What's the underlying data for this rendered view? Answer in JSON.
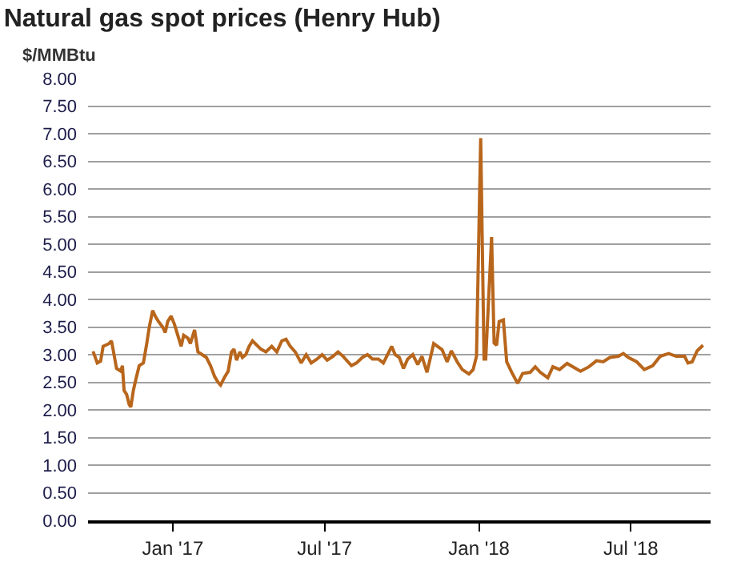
{
  "chart_data": {
    "type": "line",
    "title": "Natural gas spot prices (Henry Hub)",
    "ylabel": "$/MMBtu",
    "x": [
      "2016-09-28",
      "2016-10-03",
      "2016-10-07",
      "2016-10-10",
      "2016-10-17",
      "2016-10-20",
      "2016-10-23",
      "2016-10-26",
      "2016-10-31",
      "2016-11-02",
      "2016-11-04",
      "2016-11-07",
      "2016-11-10",
      "2016-11-12",
      "2016-11-15",
      "2016-11-18",
      "2016-11-22",
      "2016-11-27",
      "2016-12-01",
      "2016-12-04",
      "2016-12-08",
      "2016-12-11",
      "2016-12-15",
      "2016-12-20",
      "2016-12-23",
      "2016-12-26",
      "2016-12-30",
      "2017-01-03",
      "2017-01-06",
      "2017-01-11",
      "2017-01-14",
      "2017-01-19",
      "2017-01-22",
      "2017-01-27",
      "2017-01-31",
      "2017-02-05",
      "2017-02-10",
      "2017-02-15",
      "2017-02-20",
      "2017-02-24",
      "2017-02-27",
      "2017-03-04",
      "2017-03-08",
      "2017-03-12",
      "2017-03-15",
      "2017-03-18",
      "2017-03-22",
      "2017-03-25",
      "2017-03-29",
      "2017-04-02",
      "2017-04-06",
      "2017-04-16",
      "2017-04-22",
      "2017-04-29",
      "2017-05-05",
      "2017-05-11",
      "2017-05-16",
      "2017-05-21",
      "2017-05-27",
      "2017-06-03",
      "2017-06-09",
      "2017-06-15",
      "2017-06-22",
      "2017-06-28",
      "2017-07-04",
      "2017-07-11",
      "2017-07-17",
      "2017-07-23",
      "2017-08-02",
      "2017-08-08",
      "2017-08-15",
      "2017-08-21",
      "2017-08-27",
      "2017-09-03",
      "2017-09-09",
      "2017-09-14",
      "2017-09-19",
      "2017-09-23",
      "2017-09-28",
      "2017-10-03",
      "2017-10-08",
      "2017-10-14",
      "2017-10-20",
      "2017-10-25",
      "2017-10-31",
      "2017-11-08",
      "2017-11-18",
      "2017-11-24",
      "2017-11-29",
      "2017-12-06",
      "2017-12-12",
      "2017-12-20",
      "2017-12-25",
      "2017-12-29",
      "2018-01-03",
      "2018-01-07",
      "2018-01-09",
      "2018-01-16",
      "2018-01-19",
      "2018-01-22",
      "2018-01-25",
      "2018-01-30",
      "2018-02-03",
      "2018-02-09",
      "2018-02-16",
      "2018-02-22",
      "2018-03-03",
      "2018-03-09",
      "2018-03-15",
      "2018-03-24",
      "2018-03-30",
      "2018-04-07",
      "2018-04-16",
      "2018-04-25",
      "2018-05-02",
      "2018-05-12",
      "2018-05-21",
      "2018-05-29",
      "2018-06-06",
      "2018-06-16",
      "2018-06-22",
      "2018-06-28",
      "2018-07-08",
      "2018-07-17",
      "2018-07-27",
      "2018-08-05",
      "2018-08-15",
      "2018-08-24",
      "2018-09-03",
      "2018-09-07",
      "2018-09-12",
      "2018-09-18",
      "2018-09-25"
    ],
    "series": [
      {
        "color": "#b8661c",
        "values": [
          3.06,
          2.85,
          2.88,
          3.15,
          3.2,
          3.25,
          3.0,
          2.75,
          2.7,
          2.8,
          2.35,
          2.28,
          2.1,
          2.05,
          2.35,
          2.55,
          2.8,
          2.85,
          3.2,
          3.5,
          3.8,
          3.7,
          3.6,
          3.5,
          3.4,
          3.6,
          3.7,
          3.55,
          3.4,
          3.15,
          3.35,
          3.3,
          3.2,
          3.45,
          3.05,
          3.0,
          2.95,
          2.8,
          2.6,
          2.5,
          2.45,
          2.6,
          2.7,
          3.05,
          3.1,
          2.9,
          3.05,
          2.95,
          3.0,
          3.15,
          3.25,
          3.1,
          3.05,
          3.15,
          3.05,
          3.25,
          3.28,
          3.15,
          3.05,
          2.85,
          3.0,
          2.85,
          2.92,
          3.0,
          2.9,
          2.97,
          3.05,
          2.97,
          2.8,
          2.85,
          2.95,
          3.0,
          2.92,
          2.92,
          2.85,
          3.0,
          3.15,
          3.0,
          2.95,
          2.75,
          2.92,
          3.0,
          2.82,
          2.97,
          2.68,
          3.2,
          3.09,
          2.87,
          3.07,
          2.87,
          2.73,
          2.65,
          2.73,
          2.97,
          6.92,
          2.92,
          2.92,
          5.13,
          3.21,
          3.17,
          3.6,
          3.63,
          2.87,
          2.68,
          2.48,
          2.66,
          2.68,
          2.78,
          2.68,
          2.58,
          2.78,
          2.73,
          2.84,
          2.76,
          2.7,
          2.78,
          2.89,
          2.87,
          2.95,
          2.97,
          3.02,
          2.95,
          2.87,
          2.73,
          2.8,
          2.97,
          3.02,
          2.97,
          2.97,
          2.85,
          2.87,
          3.07,
          3.17
        ]
      }
    ],
    "xlim": [
      "2016-09-22",
      "2018-10-04"
    ],
    "xticks": [
      {
        "value": "2017-01-01",
        "label": "Jan '17"
      },
      {
        "value": "2017-07-01",
        "label": "Jul '17"
      },
      {
        "value": "2018-01-01",
        "label": "Jan '18"
      },
      {
        "value": "2018-07-01",
        "label": "Jul '18"
      }
    ],
    "ylim": [
      0,
      8
    ],
    "yticks": [
      {
        "value": 0,
        "label": "0.00"
      },
      {
        "value": 0.5,
        "label": "0.50"
      },
      {
        "value": 1,
        "label": "1.00"
      },
      {
        "value": 1.5,
        "label": "1.50"
      },
      {
        "value": 2,
        "label": "2.00"
      },
      {
        "value": 2.5,
        "label": "2.50"
      },
      {
        "value": 3,
        "label": "3.00"
      },
      {
        "value": 3.5,
        "label": "3.50"
      },
      {
        "value": 4,
        "label": "4.00"
      },
      {
        "value": 4.5,
        "label": "4.50"
      },
      {
        "value": 5,
        "label": "5.00"
      },
      {
        "value": 5.5,
        "label": "5.50"
      },
      {
        "value": 6,
        "label": "6.00"
      },
      {
        "value": 6.5,
        "label": "6.50"
      },
      {
        "value": 7,
        "label": "7.00"
      },
      {
        "value": 7.5,
        "label": "7.50"
      },
      {
        "value": 8,
        "label": "8.00"
      }
    ],
    "grid": "y",
    "marker": "none",
    "line_style": "solid"
  }
}
